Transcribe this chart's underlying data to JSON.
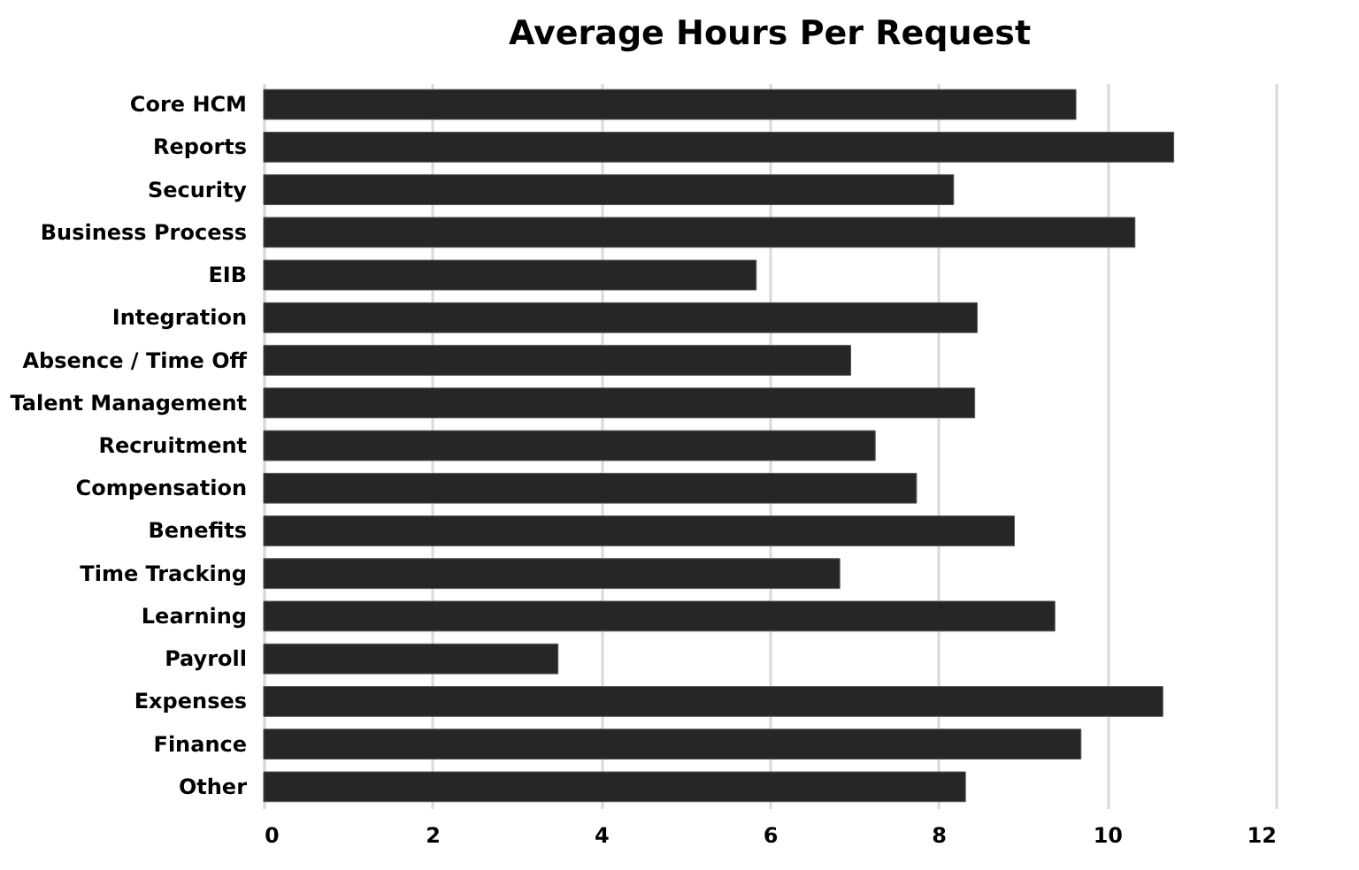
{
  "chart_data": {
    "type": "bar",
    "orientation": "horizontal",
    "title": "Average Hours Per Request",
    "categories": [
      "Core HCM",
      "Reports",
      "Security",
      "Business Process",
      "EIB",
      "Integration",
      "Absence / Time Off",
      "Talent Management",
      "Recruitment",
      "Compensation",
      "Benefits",
      "Time Tracking",
      "Learning",
      "Payroll",
      "Expenses",
      "Finance",
      "Other"
    ],
    "values": [
      9.63,
      10.79,
      8.18,
      10.33,
      5.84,
      8.46,
      6.96,
      8.43,
      7.25,
      7.74,
      8.9,
      6.83,
      9.38,
      3.49,
      10.66,
      9.69,
      8.32
    ],
    "color": "#262626",
    "xlim": [
      0,
      12
    ],
    "xticks": [
      0,
      2,
      4,
      6,
      8,
      10,
      12
    ],
    "grid": "x"
  }
}
